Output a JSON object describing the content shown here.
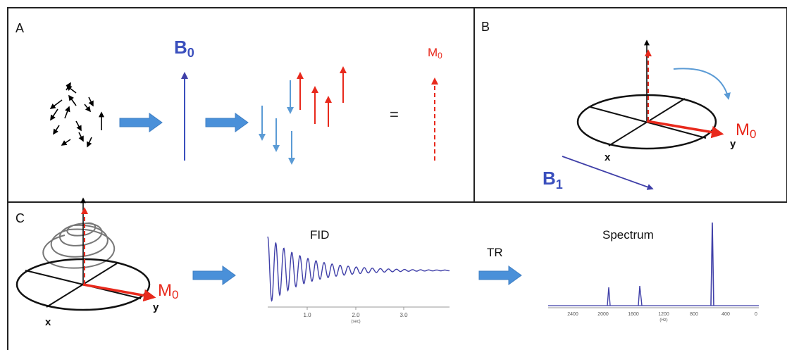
{
  "panels": {
    "a": {
      "letter": "A",
      "b0_main": "B",
      "b0_sub": "0",
      "m0_main": "M",
      "m0_sub": "0",
      "equals": "="
    },
    "b": {
      "letter": "B",
      "m0_main": "M",
      "m0_sub": "0",
      "axis_x": "x",
      "axis_y": "y",
      "b1_main": "B",
      "b1_sub": "1"
    },
    "c": {
      "letter": "C",
      "m0_main": "M",
      "m0_sub": "0",
      "axis_x": "x",
      "axis_y": "y",
      "fid_title": "FID",
      "tr_label": "TR",
      "spectrum_title": "Spectrum",
      "fid_ticks": [
        "1.0",
        "2.0",
        "3.0"
      ],
      "fid_unit": "(sec)",
      "spec_ticks": [
        "2400",
        "2000",
        "1600",
        "1200",
        "800",
        "400",
        "0"
      ],
      "spec_unit": "(Hz)"
    }
  },
  "colors": {
    "blue_arrow": "#5b9bd5",
    "spin_blue": "#2e75b6",
    "red": "#e8291c",
    "navy": "#3f3fa8",
    "label_blue": "#3a4fbd"
  }
}
